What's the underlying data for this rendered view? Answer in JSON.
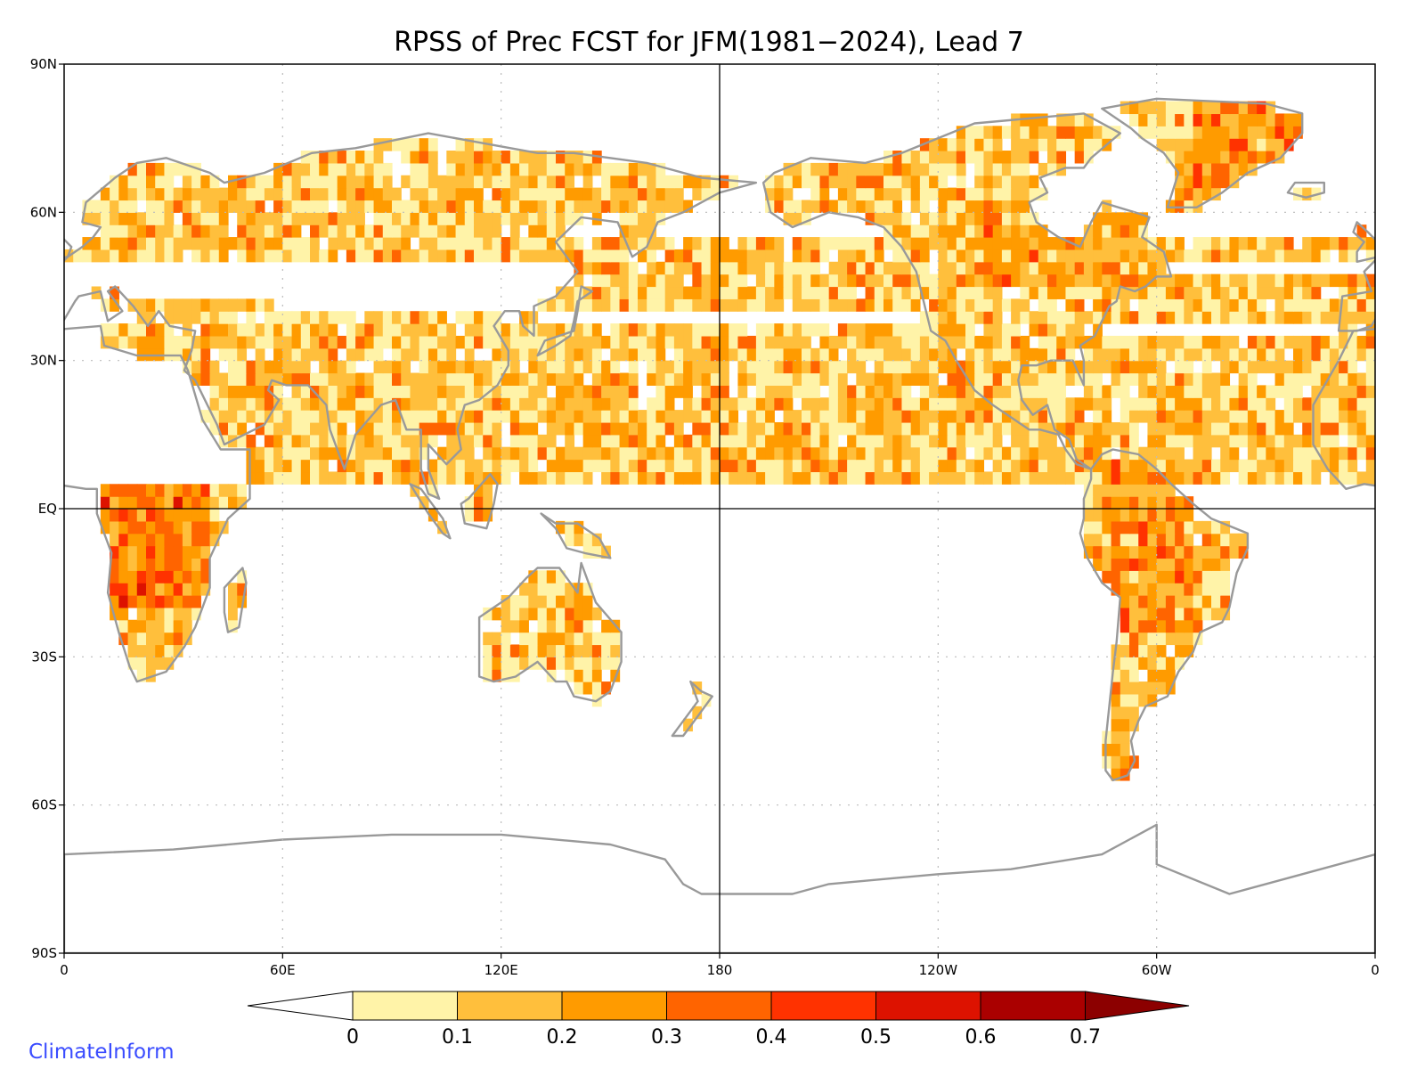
{
  "title": "RPSS of Prec FCST for JFM(1981−2024), Lead 7",
  "credit": "ClimateInform",
  "axes": {
    "lat_labels": [
      {
        "lat": 90,
        "text": "90N"
      },
      {
        "lat": 60,
        "text": "60N"
      },
      {
        "lat": 30,
        "text": "30N"
      },
      {
        "lat": 0,
        "text": "EQ"
      },
      {
        "lat": -30,
        "text": "30S"
      },
      {
        "lat": -60,
        "text": "60S"
      },
      {
        "lat": -90,
        "text": "90S"
      }
    ],
    "lon_labels": [
      {
        "lon": 0,
        "text": "0"
      },
      {
        "lon": 60,
        "text": "60E"
      },
      {
        "lon": 120,
        "text": "120E"
      },
      {
        "lon": 180,
        "text": "180"
      },
      {
        "lon": 240,
        "text": "120W"
      },
      {
        "lon": 300,
        "text": "60W"
      },
      {
        "lon": 360,
        "text": "0"
      }
    ],
    "lon_range": [
      0,
      360
    ],
    "lat_range": [
      -90,
      90
    ]
  },
  "colorbar": {
    "levels": [
      "0",
      "0.1",
      "0.2",
      "0.3",
      "0.4",
      "0.5",
      "0.6",
      "0.7"
    ],
    "colors": [
      "#ffffff",
      "#fff3a8",
      "#ffbf3c",
      "#ff9b00",
      "#ff6400",
      "#ff3200",
      "#dd1200",
      "#aa0000",
      "#8c0000"
    ]
  },
  "colors": {
    "coastline": "#999999",
    "gridline": "#bbbbbb",
    "frame": "#000000"
  }
}
